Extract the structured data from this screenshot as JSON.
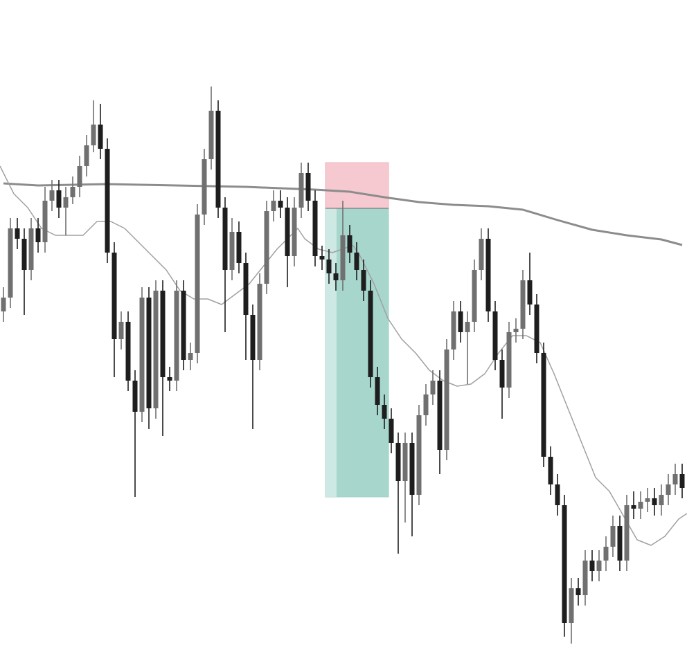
{
  "chart_data": {
    "type": "candlestick",
    "xlim": [
      -0.5,
      98.7
    ],
    "ylim": [
      0,
      932
    ],
    "up_color": "#707070",
    "down_color": "#1e1e1e",
    "open": [
      482,
      502,
      602,
      587,
      542,
      602,
      582,
      642,
      657,
      632,
      647,
      662,
      692,
      722,
      752,
      717,
      567,
      442,
      467,
      382,
      337,
      502,
      342,
      512,
      387,
      382,
      512,
      412,
      422,
      622,
      702,
      772,
      632,
      542,
      597,
      552,
      477,
      412,
      522,
      627,
      642,
      632,
      562,
      632,
      682,
      642,
      562,
      557,
      537,
      527,
      592,
      567,
      542,
      512,
      387,
      347,
      327,
      292,
      237,
      292,
      217,
      332,
      362,
      382,
      282,
      427,
      482,
      452,
      467,
      542,
      587,
      482,
      412,
      372,
      452,
      457,
      527,
      492,
      422,
      272,
      232,
      202,
      32,
      82,
      72,
      122,
      107,
      122,
      142,
      172,
      122,
      202,
      197,
      207,
      212,
      202,
      217,
      232,
      247
    ],
    "high": [
      517,
      617,
      617,
      602,
      617,
      617,
      662,
      672,
      672,
      662,
      677,
      707,
      737,
      787,
      782,
      732,
      582,
      482,
      482,
      397,
      517,
      517,
      527,
      527,
      402,
      527,
      527,
      437,
      637,
      717,
      807,
      787,
      647,
      617,
      612,
      567,
      492,
      537,
      642,
      657,
      657,
      647,
      647,
      697,
      697,
      657,
      577,
      572,
      552,
      642,
      607,
      582,
      557,
      527,
      402,
      362,
      342,
      307,
      307,
      307,
      347,
      377,
      397,
      397,
      442,
      497,
      497,
      482,
      557,
      602,
      602,
      497,
      427,
      467,
      472,
      542,
      567,
      507,
      437,
      287,
      247,
      217,
      97,
      97,
      137,
      137,
      137,
      157,
      187,
      187,
      217,
      222,
      222,
      227,
      227,
      232,
      247,
      262,
      262
    ],
    "low": [
      467,
      487,
      572,
      477,
      527,
      567,
      567,
      627,
      617,
      592,
      637,
      647,
      677,
      712,
      702,
      552,
      387,
      427,
      367,
      214,
      322,
      312,
      327,
      302,
      367,
      367,
      397,
      397,
      407,
      607,
      687,
      617,
      452,
      527,
      537,
      412,
      312,
      397,
      507,
      612,
      617,
      517,
      547,
      617,
      627,
      547,
      542,
      522,
      512,
      512,
      552,
      527,
      497,
      372,
      332,
      312,
      277,
      132,
      177,
      157,
      202,
      317,
      347,
      247,
      267,
      412,
      437,
      377,
      452,
      527,
      467,
      397,
      327,
      357,
      437,
      442,
      477,
      407,
      257,
      217,
      187,
      12,
      2,
      57,
      57,
      92,
      92,
      107,
      127,
      107,
      107,
      182,
      182,
      192,
      187,
      187,
      202,
      217,
      212
    ],
    "close": [
      502,
      602,
      587,
      542,
      602,
      582,
      642,
      657,
      632,
      647,
      662,
      692,
      722,
      752,
      717,
      567,
      442,
      467,
      382,
      337,
      502,
      342,
      512,
      387,
      382,
      512,
      412,
      422,
      622,
      702,
      772,
      632,
      542,
      597,
      552,
      477,
      412,
      522,
      627,
      642,
      632,
      562,
      632,
      682,
      642,
      562,
      557,
      537,
      527,
      592,
      567,
      542,
      512,
      387,
      347,
      327,
      292,
      237,
      292,
      217,
      332,
      362,
      382,
      282,
      427,
      482,
      452,
      467,
      542,
      587,
      482,
      412,
      372,
      452,
      457,
      527,
      492,
      422,
      272,
      232,
      202,
      32,
      82,
      72,
      122,
      107,
      122,
      142,
      172,
      122,
      202,
      197,
      207,
      212,
      202,
      217,
      232,
      247,
      227
    ],
    "lines": [
      {
        "color": "#8c8c8c",
        "width": 3,
        "x": [
          0,
          5,
          10,
          15,
          20,
          25,
          30,
          35,
          40,
          45,
          50,
          55,
          60,
          65,
          70,
          75,
          80,
          85,
          90,
          95,
          98
        ],
        "values": [
          667,
          664,
          665,
          666,
          665,
          664,
          663,
          662,
          660,
          658,
          655,
          647,
          640,
          636,
          634,
          629,
          614,
          600,
          592,
          586,
          578
        ]
      },
      {
        "color": "#a0a0a0",
        "width": 1.5,
        "x": [
          -0.5,
          1.5,
          3.5,
          5.5,
          7.5,
          9.5,
          11.5,
          13.5,
          15.5,
          17.5,
          19.5,
          21.5,
          23.5,
          25.5,
          27.5,
          29.5,
          31.5,
          33.5,
          35.5,
          37.5,
          39.5,
          41.5,
          42.5,
          43.5,
          45.5,
          47.5,
          49.5,
          50.5,
          51.5,
          53.5,
          55.5,
          57.5,
          59.5,
          61.5,
          63.5,
          65.5,
          67.5,
          69.5,
          71.5,
          73.5,
          75.5,
          77.5,
          79.5,
          81.5,
          83.5,
          85.5,
          87.5,
          89.5,
          91.5,
          93.5,
          95.5,
          97.5,
          98.7
        ],
        "values": [
          692,
          652,
          632,
          602,
          592,
          592,
          592,
          612,
          612,
          602,
          582,
          562,
          542,
          512,
          500,
          500,
          492,
          507,
          522,
          547,
          572,
          592,
          602,
          587,
          572,
          567,
          574,
          577,
          562,
          522,
          472,
          442,
          422,
          397,
          382,
          374,
          377,
          392,
          422,
          447,
          447,
          437,
          392,
          342,
          292,
          242,
          222,
          187,
          152,
          144,
          157,
          182,
          190
        ]
      }
    ],
    "position": {
      "start": 46.5,
      "end": 55.6,
      "entry": 631,
      "stop": 697,
      "target": 214,
      "stop_color": "#f5c9cf",
      "target_color": "#a7d6cd"
    }
  }
}
